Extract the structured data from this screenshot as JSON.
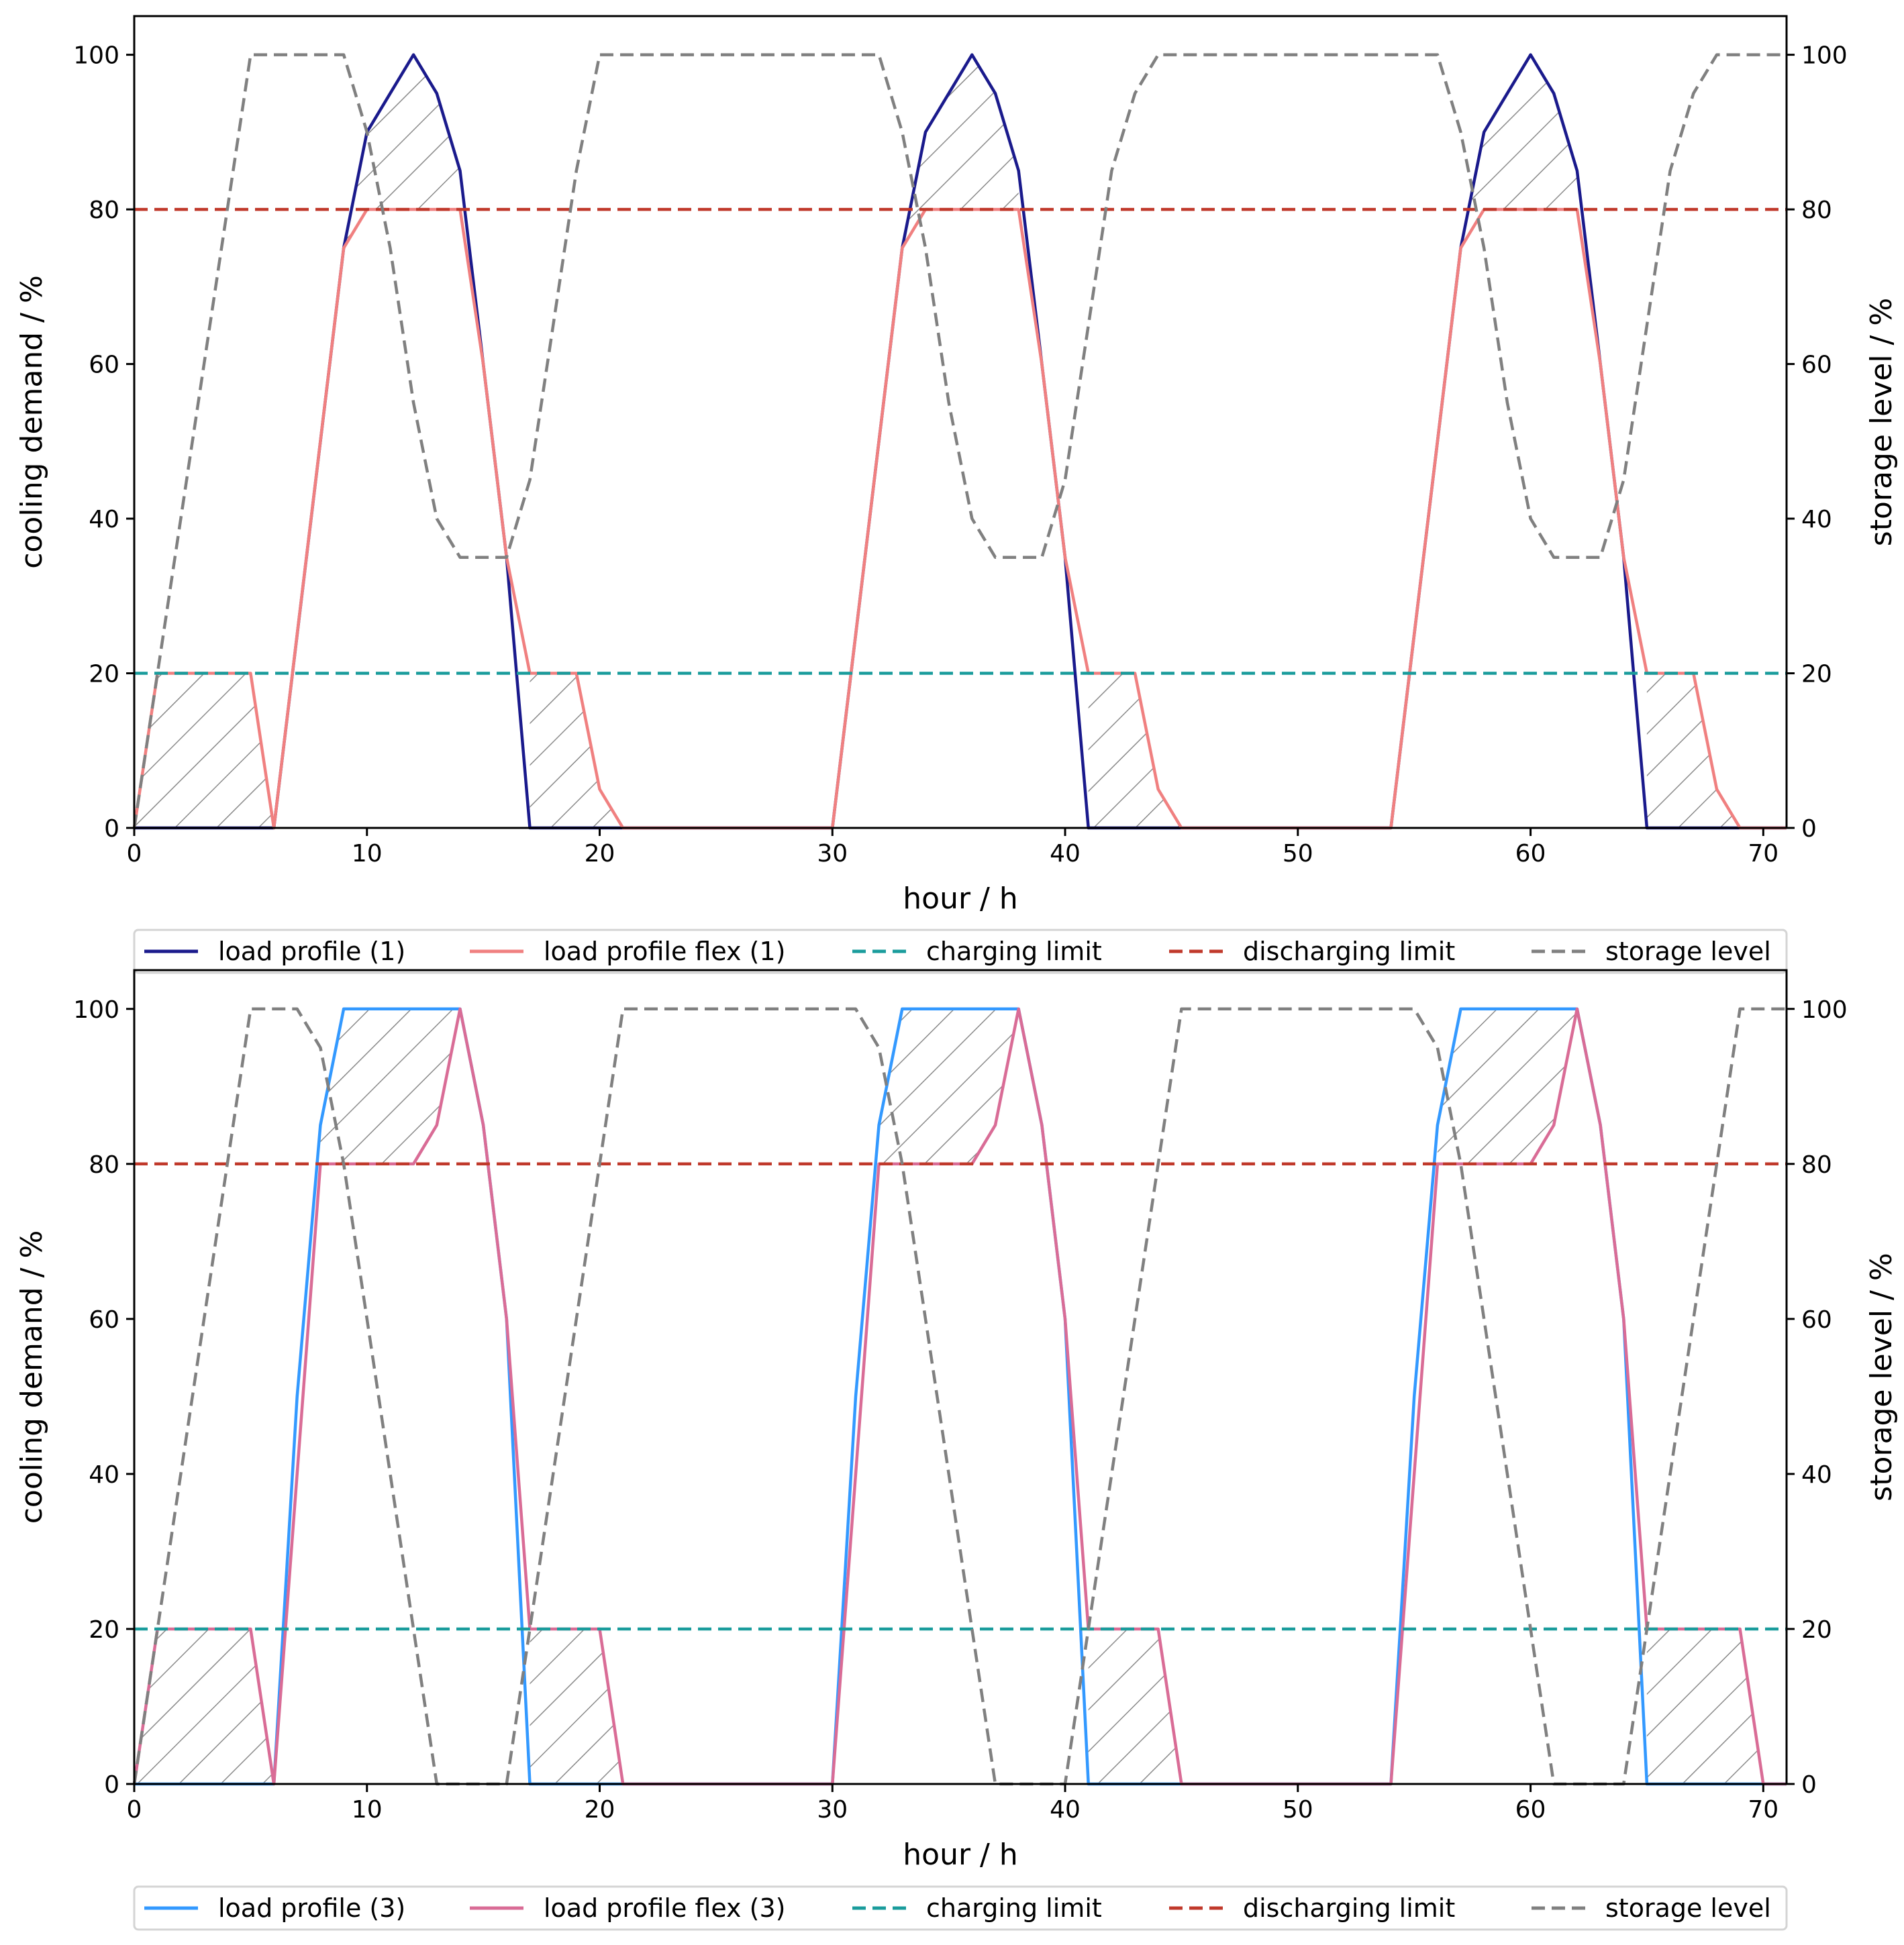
{
  "chart_data": [
    {
      "type": "line",
      "xlabel": "hour / h",
      "ylabel": "cooling demand / %",
      "y2label": "storage level / %",
      "xlim": [
        0,
        71
      ],
      "ylim": [
        0,
        105
      ],
      "y2lim": [
        0,
        105
      ],
      "xticks": [
        0,
        10,
        20,
        30,
        40,
        50,
        60,
        70
      ],
      "yticks": [
        0,
        20,
        40,
        60,
        80,
        100
      ],
      "x_tick_labels": [
        "0",
        "10",
        "20",
        "30",
        "40",
        "50",
        "60",
        "70"
      ],
      "y_tick_labels": [
        "0",
        "20",
        "40",
        "60",
        "80",
        "100"
      ],
      "y2_tick_labels": [
        "0",
        "20",
        "40",
        "60",
        "80",
        "100"
      ],
      "legend_position": "below",
      "series": [
        {
          "name": "load profile (1)",
          "color": "#1a1a8c",
          "style": "solid",
          "axis": "left",
          "x": [
            0,
            6,
            9,
            10,
            11,
            12,
            13,
            14,
            15,
            16,
            17,
            30,
            31,
            32,
            33,
            34,
            35,
            36,
            37,
            38,
            39,
            40,
            41,
            54,
            55,
            56,
            57,
            58,
            59,
            60,
            61,
            62,
            63,
            64,
            65,
            71
          ],
          "y": [
            0,
            0,
            75,
            90,
            95,
            100,
            95,
            85,
            60,
            35,
            0,
            0,
            25,
            50,
            75,
            90,
            95,
            100,
            95,
            85,
            60,
            35,
            0,
            0,
            25,
            50,
            75,
            90,
            95,
            100,
            95,
            85,
            60,
            35,
            0,
            0
          ]
        },
        {
          "name": "load profile flex (1)",
          "color": "#f08080",
          "style": "solid",
          "axis": "left",
          "x": [
            0,
            1,
            5,
            6,
            7,
            8,
            9,
            10,
            14,
            15,
            16,
            17,
            19,
            20,
            21,
            30,
            31,
            32,
            33,
            34,
            38,
            39,
            40,
            41,
            43,
            44,
            45,
            54,
            55,
            56,
            57,
            58,
            62,
            63,
            64,
            65,
            67,
            68,
            69,
            71
          ],
          "y": [
            0,
            20,
            20,
            0,
            25,
            50,
            75,
            80,
            80,
            60,
            35,
            20,
            20,
            5,
            0,
            0,
            25,
            50,
            75,
            80,
            80,
            60,
            35,
            20,
            20,
            5,
            0,
            0,
            25,
            50,
            75,
            80,
            80,
            60,
            35,
            20,
            20,
            5,
            0,
            0
          ]
        },
        {
          "name": "charging limit",
          "color": "#1a9c9c",
          "style": "dashed",
          "axis": "left",
          "x": [
            0,
            71
          ],
          "y": [
            20,
            20
          ]
        },
        {
          "name": "discharging limit",
          "color": "#c0392b",
          "style": "dashed",
          "axis": "left",
          "x": [
            0,
            71
          ],
          "y": [
            80,
            80
          ]
        },
        {
          "name": "storage level",
          "color": "#808080",
          "style": "dashed",
          "axis": "right",
          "x": [
            0,
            5,
            9,
            10,
            11,
            12,
            13,
            14,
            15,
            16,
            17,
            18,
            19,
            20,
            30,
            31,
            32,
            33,
            34,
            35,
            36,
            37,
            38,
            39,
            40,
            41,
            42,
            43,
            44,
            54,
            55,
            56,
            57,
            58,
            59,
            60,
            61,
            62,
            63,
            64,
            65,
            66,
            67,
            68,
            71
          ],
          "y": [
            0,
            100,
            100,
            90,
            75,
            55,
            40,
            35,
            35,
            35,
            45,
            65,
            85,
            100,
            100,
            100,
            100,
            90,
            75,
            55,
            40,
            35,
            35,
            35,
            45,
            65,
            85,
            95,
            100,
            100,
            100,
            100,
            90,
            75,
            55,
            40,
            35,
            35,
            35,
            45,
            65,
            85,
            95,
            100,
            100
          ]
        }
      ],
      "hatch_regions": [
        {
          "x": [
            9,
            10,
            11,
            12,
            13,
            14,
            14,
            10,
            9
          ],
          "y": [
            75,
            90,
            95,
            100,
            95,
            85,
            80,
            80,
            75
          ]
        },
        {
          "x": [
            33,
            34,
            35,
            36,
            37,
            38,
            38,
            34,
            33
          ],
          "y": [
            75,
            90,
            95,
            100,
            95,
            85,
            80,
            80,
            75
          ]
        },
        {
          "x": [
            57,
            58,
            59,
            60,
            61,
            62,
            62,
            58,
            57
          ],
          "y": [
            75,
            90,
            95,
            100,
            95,
            85,
            80,
            80,
            75
          ]
        },
        {
          "x": [
            0,
            1,
            5,
            6,
            0
          ],
          "y": [
            0,
            20,
            20,
            0,
            0
          ]
        },
        {
          "x": [
            17,
            19,
            20,
            21,
            17
          ],
          "y": [
            20,
            20,
            5,
            0,
            0
          ]
        },
        {
          "x": [
            41,
            43,
            44,
            45,
            41
          ],
          "y": [
            20,
            20,
            5,
            0,
            0
          ]
        },
        {
          "x": [
            65,
            67,
            68,
            69,
            65
          ],
          "y": [
            20,
            20,
            5,
            0,
            0
          ]
        }
      ]
    },
    {
      "type": "line",
      "xlabel": "hour / h",
      "ylabel": "cooling demand / %",
      "y2label": "storage level / %",
      "xlim": [
        0,
        71
      ],
      "ylim": [
        0,
        105
      ],
      "y2lim": [
        0,
        105
      ],
      "xticks": [
        0,
        10,
        20,
        30,
        40,
        50,
        60,
        70
      ],
      "yticks": [
        0,
        20,
        40,
        60,
        80,
        100
      ],
      "x_tick_labels": [
        "0",
        "10",
        "20",
        "30",
        "40",
        "50",
        "60",
        "70"
      ],
      "y_tick_labels": [
        "0",
        "20",
        "40",
        "60",
        "80",
        "100"
      ],
      "y2_tick_labels": [
        "0",
        "20",
        "40",
        "60",
        "80",
        "100"
      ],
      "legend_position": "below",
      "series": [
        {
          "name": "load profile (3)",
          "color": "#3399ff",
          "style": "solid",
          "axis": "left",
          "x": [
            0,
            6,
            7,
            8,
            9,
            10,
            13,
            14,
            15,
            16,
            17,
            30,
            31,
            32,
            33,
            34,
            37,
            38,
            39,
            40,
            41,
            54,
            55,
            56,
            57,
            58,
            61,
            62,
            63,
            64,
            65,
            71
          ],
          "y": [
            0,
            0,
            50,
            85,
            100,
            100,
            100,
            100,
            85,
            60,
            0,
            0,
            50,
            85,
            100,
            100,
            100,
            100,
            85,
            60,
            0,
            0,
            50,
            85,
            100,
            100,
            100,
            100,
            85,
            60,
            0,
            0
          ]
        },
        {
          "name": "load profile flex (3)",
          "color": "#d96c96",
          "style": "solid",
          "axis": "left",
          "x": [
            0,
            1,
            5,
            6,
            7,
            8,
            9,
            10,
            12,
            13,
            14,
            15,
            16,
            17,
            20,
            21,
            22,
            30,
            31,
            32,
            33,
            36,
            37,
            38,
            39,
            40,
            41,
            44,
            45,
            46,
            54,
            55,
            56,
            57,
            60,
            61,
            62,
            63,
            64,
            65,
            69,
            70,
            71
          ],
          "y": [
            0,
            20,
            20,
            0,
            40,
            80,
            80,
            80,
            80,
            85,
            100,
            85,
            60,
            20,
            20,
            0,
            0,
            0,
            40,
            80,
            80,
            80,
            85,
            100,
            85,
            60,
            20,
            20,
            0,
            0,
            0,
            40,
            80,
            80,
            80,
            85,
            100,
            85,
            60,
            20,
            20,
            0,
            0
          ]
        },
        {
          "name": "charging limit",
          "color": "#1a9c9c",
          "style": "dashed",
          "axis": "left",
          "x": [
            0,
            71
          ],
          "y": [
            20,
            20
          ]
        },
        {
          "name": "discharging limit",
          "color": "#c0392b",
          "style": "dashed",
          "axis": "left",
          "x": [
            0,
            71
          ],
          "y": [
            80,
            80
          ]
        },
        {
          "name": "storage level",
          "color": "#808080",
          "style": "dashed",
          "axis": "right",
          "x": [
            0,
            5,
            7,
            8,
            9,
            10,
            11,
            12,
            13,
            16,
            17,
            18,
            19,
            20,
            21,
            30,
            31,
            32,
            33,
            34,
            35,
            36,
            37,
            40,
            41,
            42,
            43,
            44,
            45,
            54,
            55,
            56,
            57,
            58,
            59,
            60,
            61,
            64,
            65,
            66,
            67,
            68,
            69,
            71
          ],
          "y": [
            0,
            100,
            100,
            95,
            80,
            60,
            40,
            20,
            0,
            0,
            20,
            40,
            60,
            80,
            100,
            100,
            100,
            95,
            80,
            60,
            40,
            20,
            0,
            0,
            20,
            40,
            60,
            80,
            100,
            100,
            100,
            95,
            80,
            60,
            40,
            20,
            0,
            0,
            20,
            40,
            60,
            80,
            100,
            100
          ]
        }
      ],
      "hatch_regions": [
        {
          "x": [
            8,
            9,
            10,
            13,
            14,
            13,
            12,
            8
          ],
          "y": [
            85,
            100,
            100,
            100,
            100,
            85,
            80,
            80
          ]
        },
        {
          "x": [
            32,
            33,
            34,
            37,
            38,
            37,
            36,
            32
          ],
          "y": [
            85,
            100,
            100,
            100,
            100,
            85,
            80,
            80
          ]
        },
        {
          "x": [
            56,
            57,
            58,
            61,
            62,
            61,
            60,
            56
          ],
          "y": [
            85,
            100,
            100,
            100,
            100,
            85,
            80,
            80
          ]
        },
        {
          "x": [
            0,
            1,
            5,
            6,
            0
          ],
          "y": [
            0,
            20,
            20,
            0,
            0
          ]
        },
        {
          "x": [
            17,
            20,
            21,
            22,
            17
          ],
          "y": [
            20,
            20,
            0,
            0,
            0
          ]
        },
        {
          "x": [
            41,
            44,
            45,
            46,
            41
          ],
          "y": [
            20,
            20,
            0,
            0,
            0
          ]
        },
        {
          "x": [
            65,
            69,
            70,
            65
          ],
          "y": [
            20,
            20,
            0,
            0
          ]
        }
      ]
    }
  ]
}
